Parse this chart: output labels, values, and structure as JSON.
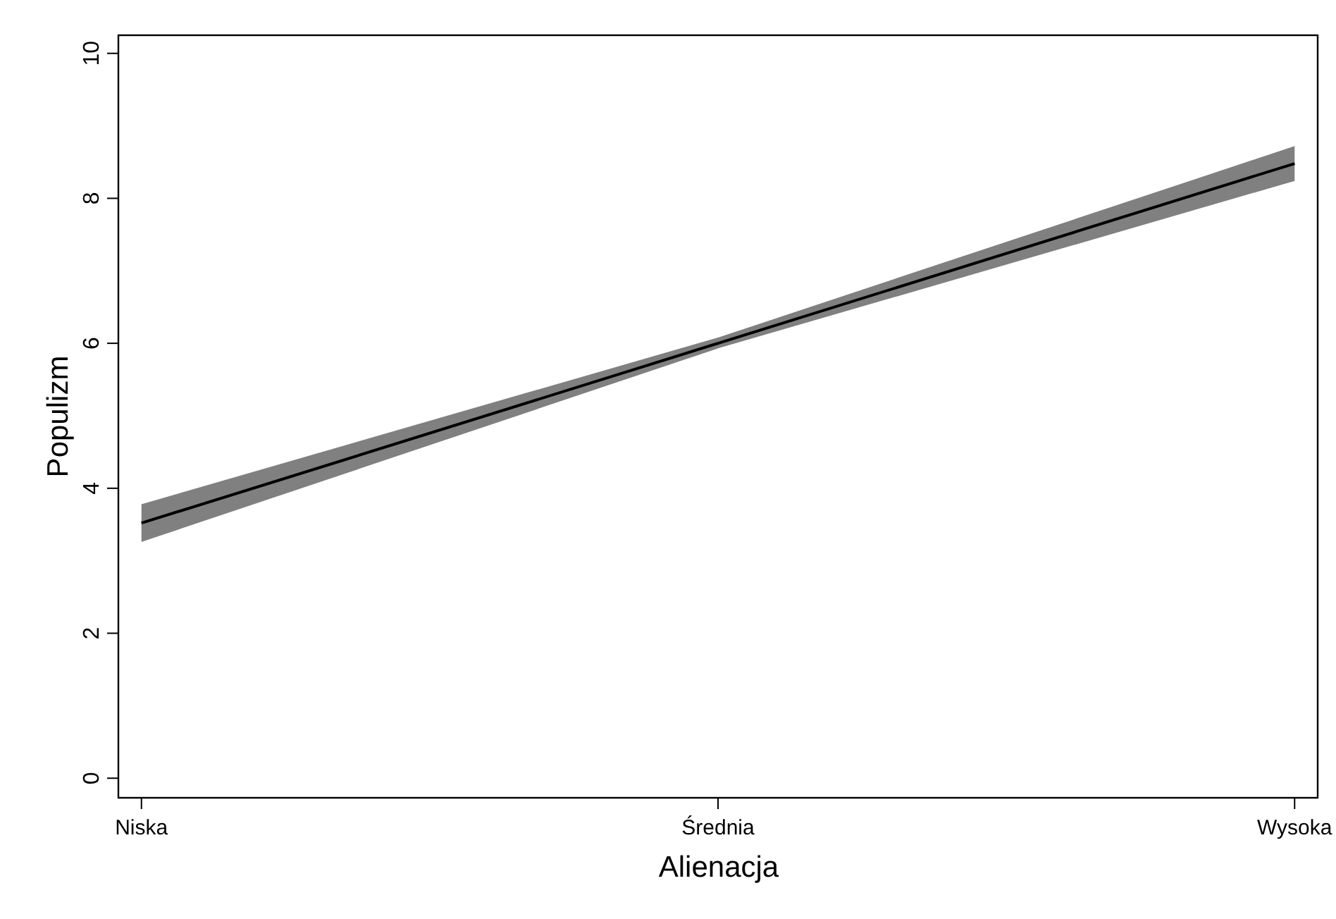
{
  "chart_data": {
    "type": "line",
    "xlabel": "Alienacja",
    "ylabel": "Populizm",
    "categories": [
      "Niska",
      "Średnia",
      "Wysoka"
    ],
    "series": [
      {
        "color": "#000000",
        "values": [
          3.52,
          6.0,
          8.48
        ],
        "lower": [
          3.26,
          5.93,
          8.24
        ],
        "upper": [
          3.78,
          6.08,
          8.72
        ]
      }
    ],
    "ylim": [
      -0.27,
      10.25
    ],
    "yticks": [
      0,
      2,
      4,
      6,
      8,
      10
    ]
  }
}
